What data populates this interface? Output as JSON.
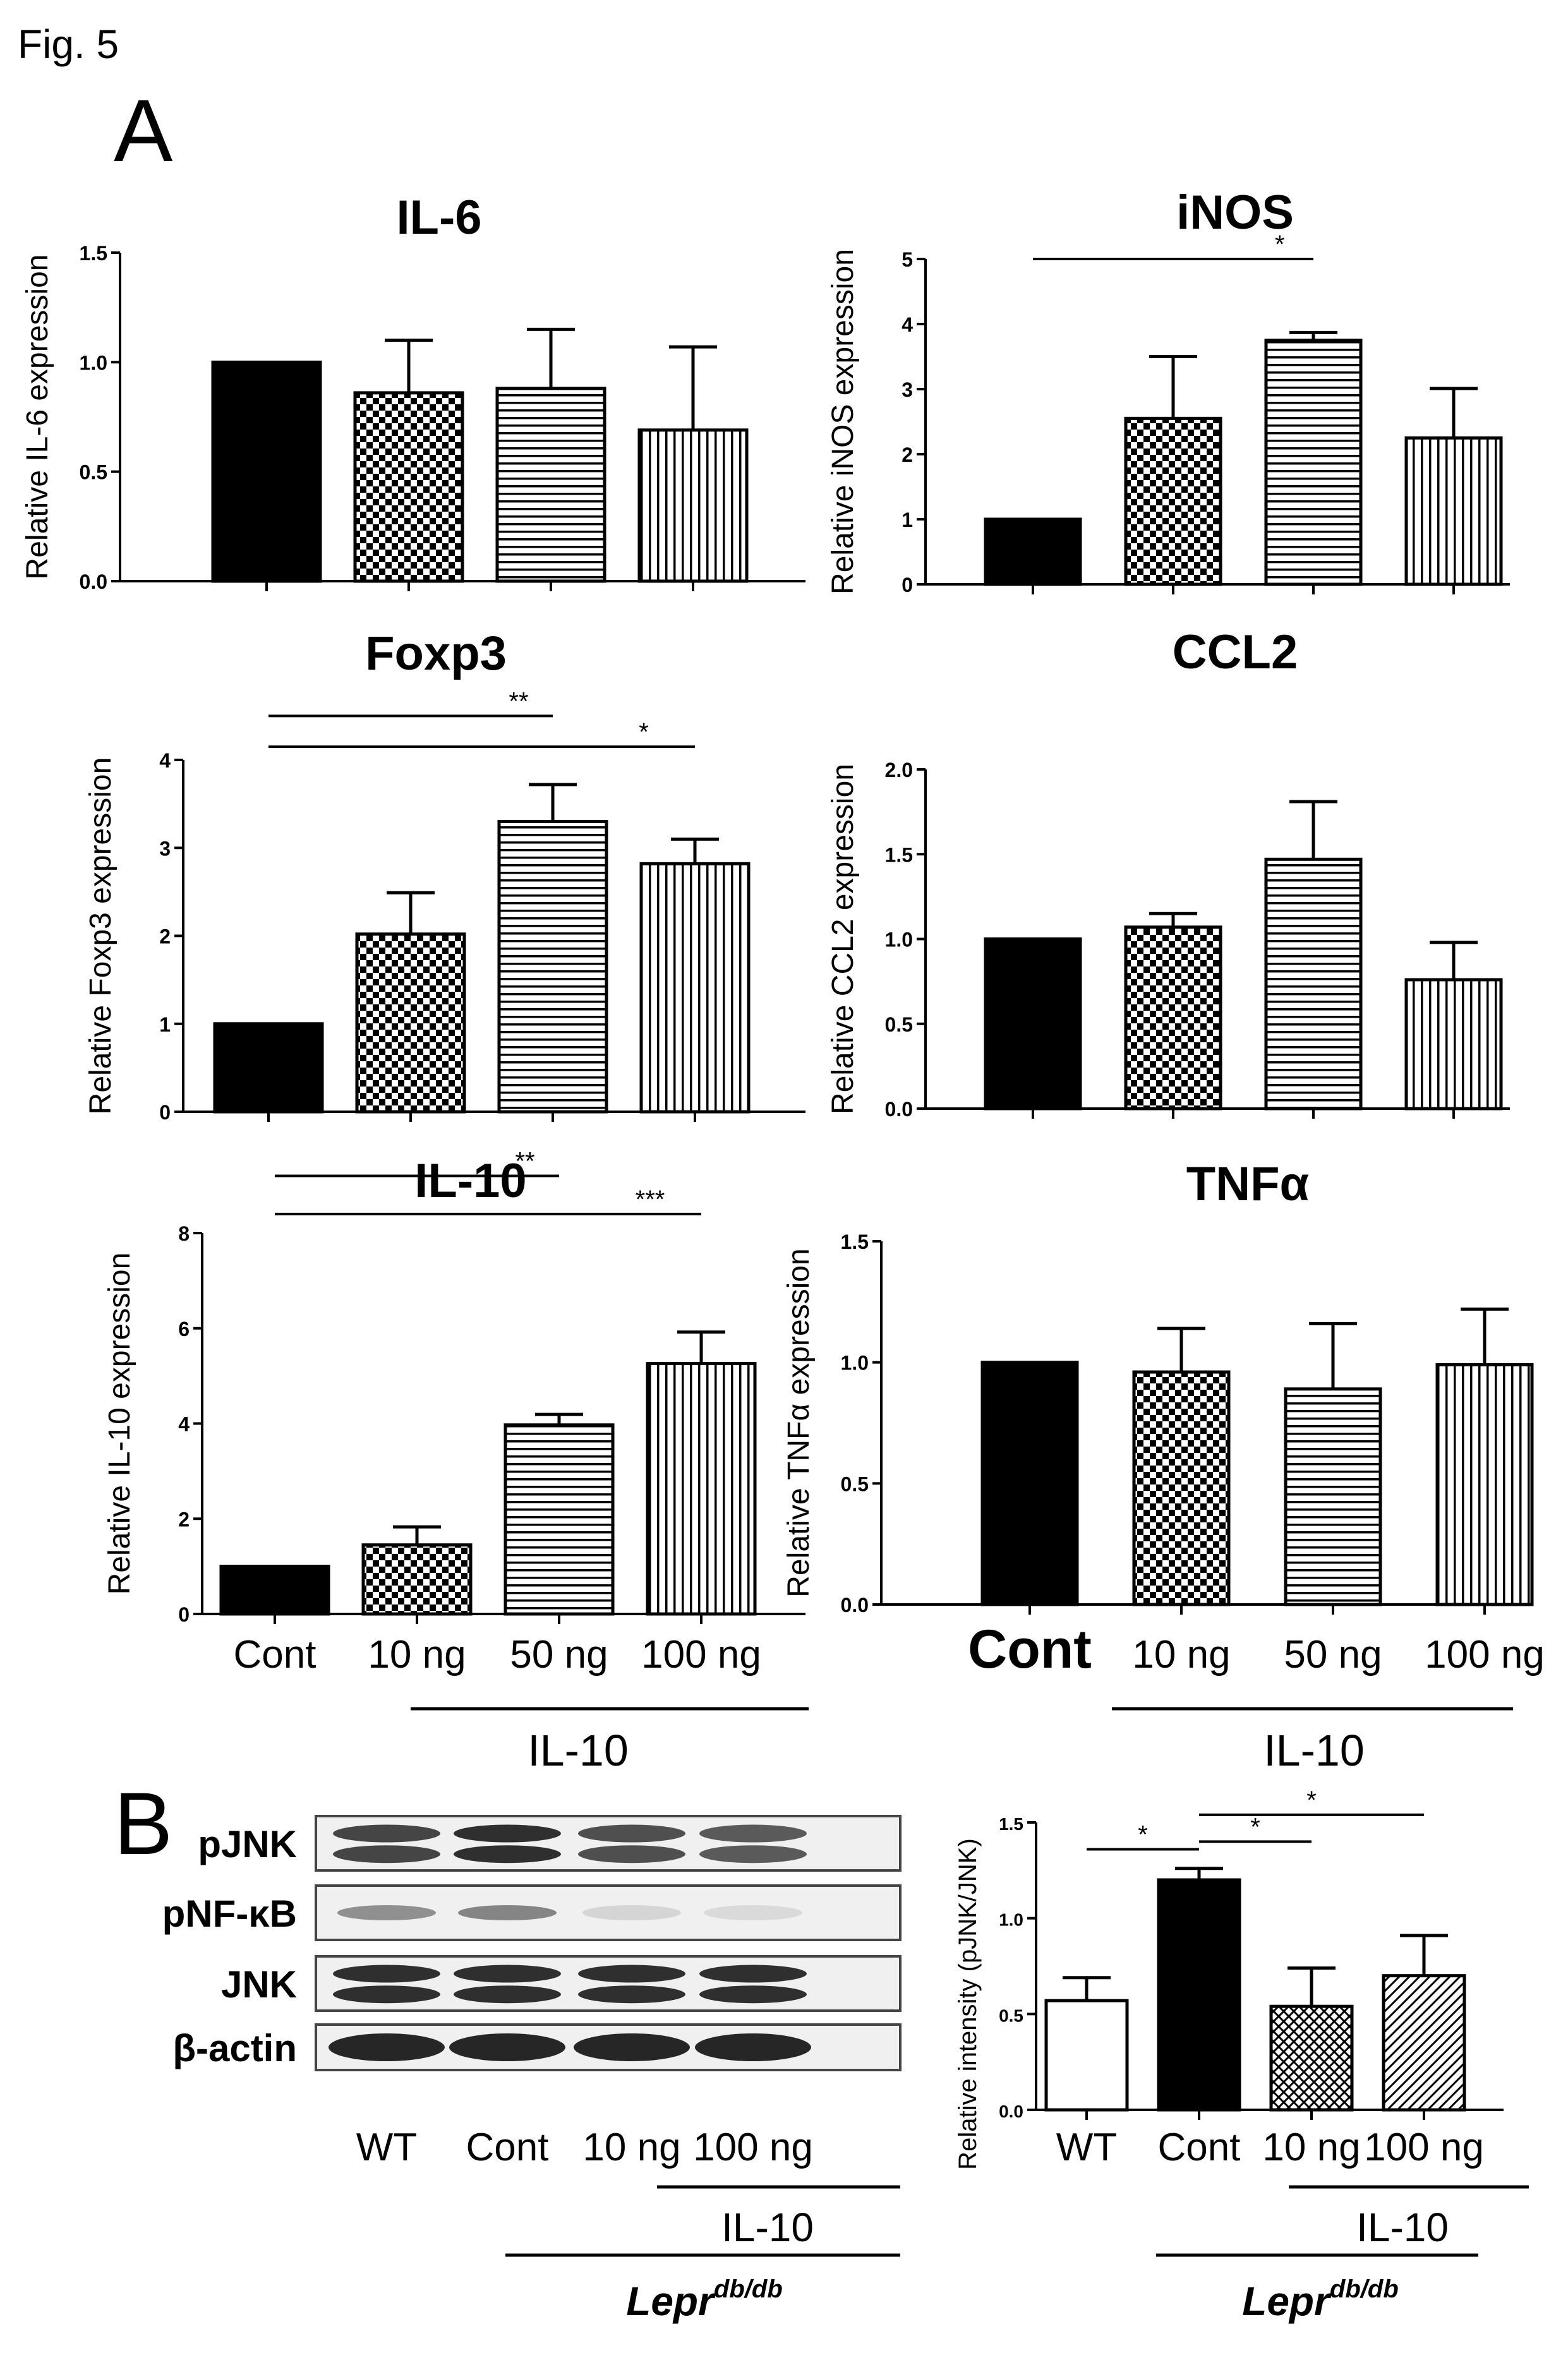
{
  "figure": {
    "label": "Fig. 5",
    "panel_a": "A",
    "panel_b": "B",
    "il10_group": "IL-10",
    "genotype": "Lepr",
    "genotype_sup": "db/db"
  },
  "styles": {
    "cont": "solid",
    "10ng": "checker",
    "50ng": "hlines",
    "100ng": "vlines",
    "wt": "white",
    "cross": "crosshatch",
    "diag": "diagonal"
  },
  "chart_data": [
    {
      "type": "bar",
      "title": "IL-6",
      "ylabel": "Relative IL-6 expression",
      "categories": [
        "Cont",
        "10 ng",
        "50 ng",
        "100 ng"
      ],
      "values": [
        1.0,
        0.86,
        0.88,
        0.69
      ],
      "errors": [
        0,
        0.24,
        0.27,
        0.38
      ],
      "ylim": [
        0,
        1.5
      ],
      "yticks": [
        "0.0",
        "0.5",
        "1.0",
        "1.5"
      ],
      "ytick_values": [
        0,
        0.5,
        1.0,
        1.5
      ],
      "styles": [
        "cont",
        "10ng",
        "50ng",
        "100ng"
      ],
      "significance": []
    },
    {
      "type": "bar",
      "title": "iNOS",
      "ylabel": "Relative iNOS expression",
      "categories": [
        "Cont",
        "10 ng",
        "50 ng",
        "100 ng"
      ],
      "values": [
        1.0,
        2.55,
        3.75,
        2.25
      ],
      "errors": [
        0,
        0.95,
        0.12,
        0.76
      ],
      "ylim": [
        0,
        5
      ],
      "yticks": [
        "0",
        "1",
        "2",
        "3",
        "4",
        "5"
      ],
      "ytick_values": [
        0,
        1,
        2,
        3,
        4,
        5
      ],
      "styles": [
        "cont",
        "10ng",
        "50ng",
        "100ng"
      ],
      "significance": [
        {
          "from": 0,
          "to": 2,
          "y": 5.0,
          "label": "*"
        }
      ]
    },
    {
      "type": "bar",
      "title": "Foxp3",
      "ylabel": "Relative Foxp3 expression",
      "categories": [
        "Cont",
        "10 ng",
        "50 ng",
        "100 ng"
      ],
      "values": [
        1.0,
        2.02,
        3.3,
        2.82
      ],
      "errors": [
        0,
        0.47,
        0.42,
        0.28
      ],
      "ylim": [
        0,
        4
      ],
      "yticks": [
        "0",
        "1",
        "2",
        "3",
        "4"
      ],
      "ytick_values": [
        0,
        1,
        2,
        3,
        4
      ],
      "styles": [
        "cont",
        "10ng",
        "50ng",
        "100ng"
      ],
      "significance": [
        {
          "from": 0,
          "to": 2,
          "y": 4.5,
          "label": "**"
        },
        {
          "from": 0,
          "to": 3,
          "y": 4.15,
          "label": "*"
        }
      ]
    },
    {
      "type": "bar",
      "title": "CCL2",
      "ylabel": "Relative CCL2 expression",
      "categories": [
        "Cont",
        "10 ng",
        "50 ng",
        "100 ng"
      ],
      "values": [
        1.0,
        1.07,
        1.47,
        0.76
      ],
      "errors": [
        0,
        0.08,
        0.34,
        0.22
      ],
      "ylim": [
        0,
        2.0
      ],
      "yticks": [
        "0.0",
        "0.5",
        "1.0",
        "1.5",
        "2.0"
      ],
      "ytick_values": [
        0,
        0.5,
        1.0,
        1.5,
        2.0
      ],
      "styles": [
        "cont",
        "10ng",
        "50ng",
        "100ng"
      ],
      "significance": []
    },
    {
      "type": "bar",
      "title": "IL-10",
      "ylabel": "Relative IL-10 expression",
      "categories": [
        "Cont",
        "10 ng",
        "50 ng",
        "100 ng"
      ],
      "values": [
        1.0,
        1.45,
        3.97,
        5.26
      ],
      "errors": [
        0,
        0.38,
        0.22,
        0.66
      ],
      "ylim": [
        0,
        8
      ],
      "yticks": [
        "0",
        "2",
        "4",
        "6",
        "8"
      ],
      "ytick_values": [
        0,
        2,
        4,
        6,
        8
      ],
      "styles": [
        "cont",
        "10ng",
        "50ng",
        "100ng"
      ],
      "significance": [
        {
          "from": 0,
          "to": 2,
          "y": 9.2,
          "label": "**"
        },
        {
          "from": 0,
          "to": 3,
          "y": 8.4,
          "label": "***"
        }
      ]
    },
    {
      "type": "bar",
      "title": "TNFα",
      "ylabel": "Relative TNFα expression",
      "categories": [
        "Cont",
        "10 ng",
        "50 ng",
        "100 ng"
      ],
      "values": [
        1.0,
        0.96,
        0.89,
        0.99
      ],
      "errors": [
        0,
        0.18,
        0.27,
        0.23
      ],
      "ylim": [
        0,
        1.5
      ],
      "yticks": [
        "0.0",
        "0.5",
        "1.0",
        "1.5"
      ],
      "ytick_values": [
        0,
        0.5,
        1.0,
        1.5
      ],
      "styles": [
        "cont",
        "10ng",
        "50ng",
        "100ng"
      ],
      "significance": []
    },
    {
      "type": "bar",
      "title": "",
      "ylabel": "Relative intensity (pJNK/JNK)",
      "categories": [
        "WT",
        "Cont",
        "10 ng",
        "100 ng"
      ],
      "values": [
        0.57,
        1.2,
        0.54,
        0.7
      ],
      "errors": [
        0.12,
        0.06,
        0.2,
        0.21
      ],
      "ylim": [
        0,
        1.5
      ],
      "yticks": [
        "0.0",
        "0.5",
        "1.0",
        "1.5"
      ],
      "ytick_values": [
        0,
        0.5,
        1.0,
        1.5
      ],
      "styles": [
        "wt",
        "cont",
        "cross",
        "diag"
      ],
      "significance": [
        {
          "from": 0,
          "to": 1,
          "y": 1.36,
          "label": "*"
        },
        {
          "from": 1,
          "to": 2,
          "y": 1.4,
          "label": "*"
        },
        {
          "from": 1,
          "to": 3,
          "y": 1.54,
          "label": "*"
        }
      ]
    }
  ],
  "western_blot": {
    "rows": [
      "pJNK",
      "pNF-κB",
      "JNK",
      "β-actin"
    ],
    "lanes": [
      "WT",
      "Cont",
      "10 ng",
      "100 ng"
    ],
    "intensity": {
      "pJNK": [
        0.8,
        0.9,
        0.75,
        0.7
      ],
      "pNF-κB": [
        0.45,
        0.5,
        0.12,
        0.1
      ],
      "JNK": [
        0.9,
        0.9,
        0.9,
        0.9
      ],
      "β-actin": [
        0.95,
        0.95,
        0.95,
        0.95
      ]
    }
  }
}
